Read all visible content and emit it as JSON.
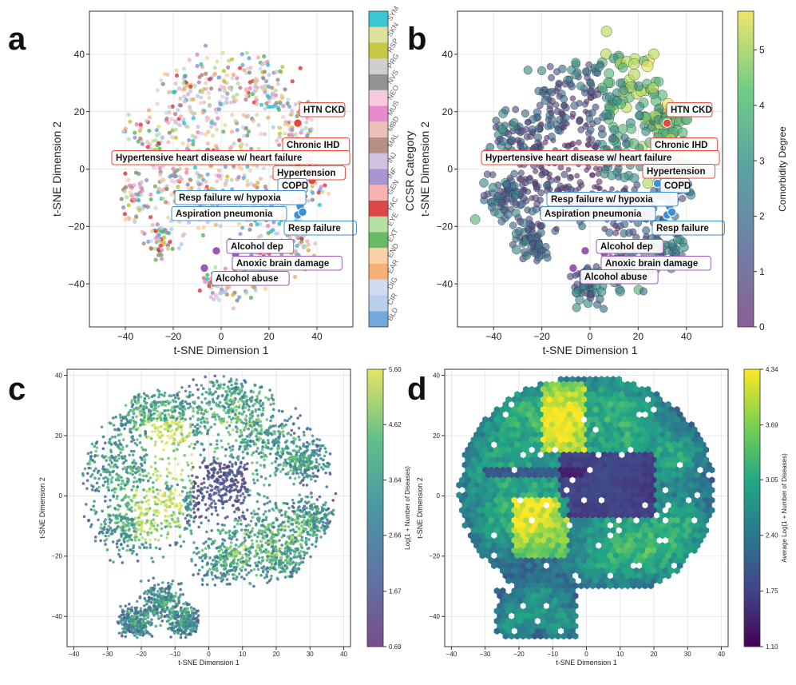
{
  "figure": {
    "panel_labels": [
      "a",
      "b",
      "c",
      "d"
    ]
  },
  "chart_data": [
    {
      "panel": "a",
      "type": "scatter",
      "title": "",
      "xlabel": "t-SNE Dimension 1",
      "ylabel": "t-SNE Dimension 2",
      "xlim": [
        -55,
        55
      ],
      "ylim": [
        -55,
        55
      ],
      "xticks": [
        -40,
        -20,
        0,
        20,
        40
      ],
      "yticks": [
        -40,
        -20,
        0,
        20,
        40
      ],
      "xtick_labels": [
        "−40",
        "−20",
        "0",
        "20",
        "40"
      ],
      "ytick_labels": [
        "−40",
        "−20",
        "0",
        "20",
        "40"
      ],
      "colorbar_label": "CCSR Category",
      "colorbar_categories": [
        "BLD",
        "CIR",
        "DIG",
        "EAR",
        "END",
        "EXT",
        "EYE",
        "FAC",
        "GEN",
        "INF",
        "INJ",
        "MAL",
        "MBD",
        "MUS",
        "NEO",
        "NVS",
        "PRG",
        "RSP",
        "SKN",
        "SYM"
      ],
      "colorbar_colors": [
        "#5b9bd5",
        "#aec7e8",
        "#c6d5ee",
        "#f5a25d",
        "#f9c896",
        "#4daf4a",
        "#a8dd93",
        "#d62728",
        "#f4a6a5",
        "#9a82c8",
        "#c8b8dd",
        "#a97b6f",
        "#e7b5ab",
        "#e377c2",
        "#f6c0d8",
        "#7f7f7f",
        "#c7c7c7",
        "#bcbd22",
        "#dbdb8d",
        "#17becf"
      ],
      "annotations": [
        {
          "label": "HTN CKD",
          "x": 32,
          "y": 16,
          "group": "red"
        },
        {
          "label": "Chronic IHD",
          "x": 37,
          "y": 2.5,
          "group": "red"
        },
        {
          "label": "Hypertensive heart disease w/ heart failure",
          "x": 32,
          "y": 0.5,
          "group": "red"
        },
        {
          "label": "Hypertension",
          "x": 38,
          "y": -4,
          "group": "red"
        },
        {
          "label": "COPD",
          "x": 28,
          "y": -5,
          "group": "blue"
        },
        {
          "label": "Resp failure w/ hypoxia",
          "x": 33,
          "y": -13,
          "group": "blue"
        },
        {
          "label": "Aspiration pneumonia",
          "x": 32,
          "y": -16,
          "group": "blue"
        },
        {
          "label": "Resp failure",
          "x": 34,
          "y": -15,
          "group": "blue"
        },
        {
          "label": "Alcohol dep",
          "x": -2,
          "y": -28.5,
          "group": "purple"
        },
        {
          "label": "Anoxic brain damage",
          "x": 6,
          "y": -29.5,
          "group": "purple"
        },
        {
          "label": "Alcohol abuse",
          "x": -7,
          "y": -34.5,
          "group": "purple"
        }
      ]
    },
    {
      "panel": "b",
      "type": "scatter",
      "xlabel": "t-SNE Dimension 1",
      "ylabel": "t-SNE Dimension 2",
      "xlim": [
        -55,
        55
      ],
      "ylim": [
        -55,
        55
      ],
      "xticks": [
        -40,
        -20,
        0,
        20,
        40
      ],
      "yticks": [
        -40,
        -20,
        0,
        20,
        40
      ],
      "xtick_labels": [
        "−40",
        "−20",
        "0",
        "20",
        "40"
      ],
      "ytick_labels": [
        "−40",
        "−20",
        "0",
        "20",
        "40"
      ],
      "colorbar_label": "Comorbidity Degree",
      "colorbar_range": [
        0,
        5.7
      ],
      "colorbar_ticks": [
        "0",
        "1",
        "2",
        "3",
        "4",
        "5"
      ],
      "colorbar_tick_values": [
        0,
        1,
        2,
        3,
        4,
        5
      ]
    },
    {
      "panel": "c",
      "type": "scatter",
      "xlabel": "t-SNE Dimension 1",
      "ylabel": "t-SNE Dimension 2",
      "xlim": [
        -42,
        42
      ],
      "ylim": [
        -50,
        42
      ],
      "xticks": [
        -40,
        -30,
        -20,
        -10,
        0,
        10,
        20,
        30,
        40
      ],
      "yticks": [
        -40,
        -20,
        0,
        20,
        40
      ],
      "xtick_labels": [
        "−40",
        "−30",
        "−20",
        "−10",
        "0",
        "10",
        "20",
        "30",
        "40"
      ],
      "ytick_labels": [
        "−40",
        "−20",
        "0",
        "20",
        "40"
      ],
      "colorbar_label": "Log(1 + Number of Diseases)",
      "colorbar_range": [
        0.69,
        5.6
      ],
      "colorbar_ticks": [
        "0.69",
        "1.67",
        "2.66",
        "3.64",
        "4.62",
        "5.60"
      ],
      "colorbar_tick_values": [
        0.69,
        1.67,
        2.66,
        3.64,
        4.62,
        5.6
      ]
    },
    {
      "panel": "d",
      "type": "heatmap",
      "xlabel": "t-SNE Dimension 1",
      "ylabel": "t-SNE Dimension 2",
      "xlim": [
        -42,
        42
      ],
      "ylim": [
        -50,
        42
      ],
      "xticks": [
        -40,
        -30,
        -20,
        -10,
        0,
        10,
        20,
        30,
        40
      ],
      "yticks": [
        -40,
        -20,
        0,
        20,
        40
      ],
      "xtick_labels": [
        "−40",
        "−30",
        "−20",
        "−10",
        "0",
        "10",
        "20",
        "30",
        "40"
      ],
      "ytick_labels": [
        "−40",
        "−20",
        "0",
        "20",
        "40"
      ],
      "colorbar_label": "Average Log(1 + Number of Diseases)",
      "colorbar_range": [
        1.1,
        4.34
      ],
      "colorbar_ticks": [
        "1.10",
        "1.75",
        "2.40",
        "3.05",
        "3.69",
        "4.34"
      ],
      "colorbar_tick_values": [
        1.1,
        1.75,
        2.4,
        3.05,
        3.69,
        4.34
      ]
    }
  ]
}
